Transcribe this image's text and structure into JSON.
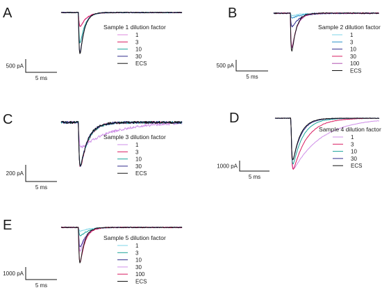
{
  "chart_data": [
    {
      "panel": "A",
      "type": "line",
      "legend_title": "Sample 1 dilution factor",
      "scale_bar": {
        "y": "500 pA",
        "x": "5 ms"
      },
      "series": [
        {
          "name": "1",
          "color": "#dd88dd",
          "peak_frac": 0.3,
          "tau": 1.0,
          "noise": 0.01
        },
        {
          "name": "3",
          "color": "#d81b60",
          "peak_frac": 0.3,
          "tau": 1.0,
          "noise": 0.01
        },
        {
          "name": "10",
          "color": "#1aa39a",
          "peak_frac": 0.7,
          "tau": 0.8,
          "noise": 0.01
        },
        {
          "name": "30",
          "color": "#2f2a8c",
          "peak_frac": 0.97,
          "tau": 0.7,
          "noise": 0.01
        },
        {
          "name": "ECS",
          "color": "#111111",
          "peak_frac": 1.0,
          "tau": 0.7,
          "noise": 0.01
        }
      ]
    },
    {
      "panel": "B",
      "type": "line",
      "legend_title": "Sample 2 dilution factor",
      "scale_bar": {
        "y": "500 pA",
        "x": "5 ms"
      },
      "series": [
        {
          "name": "1",
          "color": "#7ed6e8",
          "peak_frac": 0.05,
          "tau": 1.5,
          "noise": 0.015
        },
        {
          "name": "3",
          "color": "#2a93c9",
          "peak_frac": 0.1,
          "tau": 1.5,
          "noise": 0.015
        },
        {
          "name": "10",
          "color": "#2f2a8c",
          "peak_frac": 0.3,
          "tau": 1.2,
          "noise": 0.015
        },
        {
          "name": "30",
          "color": "#d81b60",
          "peak_frac": 0.85,
          "tau": 0.8,
          "noise": 0.015
        },
        {
          "name": "100",
          "color": "#b04fb0",
          "peak_frac": 0.87,
          "tau": 0.8,
          "noise": 0.015
        },
        {
          "name": "ECS",
          "color": "#111111",
          "peak_frac": 1.0,
          "tau": 0.7,
          "noise": 0.015
        }
      ]
    },
    {
      "panel": "C",
      "type": "line",
      "legend_title": "Sample 3 dilution factor",
      "scale_bar": {
        "y": "200 pA",
        "x": "5 ms"
      },
      "series": [
        {
          "name": "1",
          "color": "#cf8fe8",
          "peak_frac": 0.45,
          "tau": 5.0,
          "noise": 0.035
        },
        {
          "name": "3",
          "color": "#d81b60",
          "peak_frac": 0.98,
          "tau": 1.3,
          "noise": 0.03
        },
        {
          "name": "10",
          "color": "#1aa39a",
          "peak_frac": 0.95,
          "tau": 1.3,
          "noise": 0.03
        },
        {
          "name": "30",
          "color": "#2f2a8c",
          "peak_frac": 1.0,
          "tau": 1.2,
          "noise": 0.03
        },
        {
          "name": "ECS",
          "color": "#111111",
          "peak_frac": 1.0,
          "tau": 1.2,
          "noise": 0.03
        }
      ]
    },
    {
      "panel": "D",
      "type": "line",
      "legend_title": "Sample 4 dilution factor",
      "scale_bar": {
        "y": "1000 pA",
        "x": "5 ms"
      },
      "series": [
        {
          "name": "1",
          "color": "#cf8fe8",
          "peak_frac": 0.9,
          "tau": 4.5,
          "noise": 0.006
        },
        {
          "name": "3",
          "color": "#d81b60",
          "peak_frac": 1.0,
          "tau": 2.2,
          "noise": 0.006
        },
        {
          "name": "10",
          "color": "#1aa39a",
          "peak_frac": 0.95,
          "tau": 1.6,
          "noise": 0.006
        },
        {
          "name": "30",
          "color": "#2f2a8c",
          "peak_frac": 0.9,
          "tau": 1.3,
          "noise": 0.006
        },
        {
          "name": "ECS",
          "color": "#111111",
          "peak_frac": 0.92,
          "tau": 1.2,
          "noise": 0.006
        }
      ]
    },
    {
      "panel": "E",
      "type": "line",
      "legend_title": "Sample 5 dilution factor",
      "scale_bar": {
        "y": "1000 pA",
        "x": "5 ms"
      },
      "series": [
        {
          "name": "1",
          "color": "#7ed6e8",
          "peak_frac": 0.08,
          "tau": 1.5,
          "noise": 0.012
        },
        {
          "name": "3",
          "color": "#1aa39a",
          "peak_frac": 0.2,
          "tau": 1.3,
          "noise": 0.012
        },
        {
          "name": "10",
          "color": "#2f2a8c",
          "peak_frac": 0.5,
          "tau": 1.0,
          "noise": 0.012
        },
        {
          "name": "30",
          "color": "#cf8fe8",
          "peak_frac": 0.62,
          "tau": 0.9,
          "noise": 0.012
        },
        {
          "name": "100",
          "color": "#d81b60",
          "peak_frac": 0.95,
          "tau": 0.8,
          "noise": 0.012
        },
        {
          "name": "ECS",
          "color": "#111111",
          "peak_frac": 1.0,
          "tau": 0.7,
          "noise": 0.012
        }
      ]
    }
  ]
}
